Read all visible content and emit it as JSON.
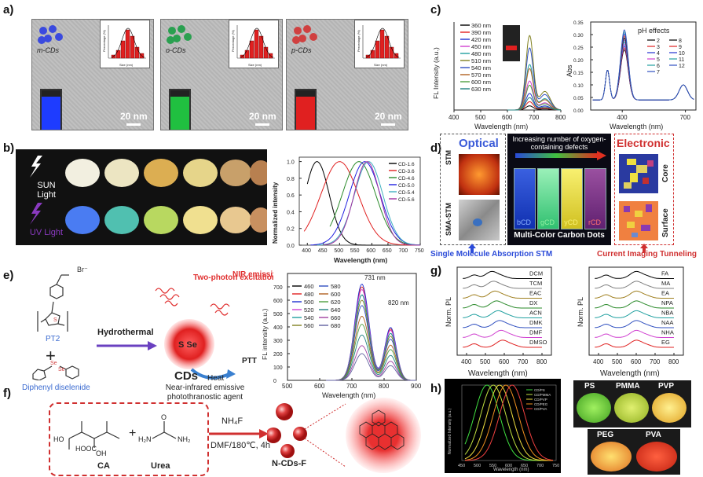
{
  "panels": {
    "a": {
      "label": "a)",
      "tem": [
        {
          "name": "m-CDs",
          "scale": "20 nm",
          "vial_color": "#1e3cff",
          "dots_color": "#3a4adf"
        },
        {
          "name": "o-CDs",
          "scale": "20 nm",
          "vial_color": "#20c040",
          "dots_color": "#2aa050"
        },
        {
          "name": "p-CDs",
          "scale": "20 nm",
          "vial_color": "#e02020",
          "dots_color": "#d04040"
        }
      ],
      "inset_xlabel": "Size (nm)",
      "inset_ylabel": "Percentage (%)"
    },
    "b": {
      "label": "b)",
      "sun_label": "SUN Light",
      "uv_label": "UV Light",
      "legend": [
        "CD-1.6",
        "CD-3.6",
        "CD-4.6",
        "CD-5.0",
        "CD-5.4",
        "CD-5.6"
      ],
      "colors": [
        "#000000",
        "#e02020",
        "#2a8a2a",
        "#2020e0",
        "#40b0c0",
        "#a030a0"
      ],
      "ylabel": "Normalized intensity",
      "xlabel": "Wavelength (nm)",
      "xticks": [
        "400",
        "450",
        "500",
        "550",
        "600",
        "650",
        "700",
        "750"
      ],
      "yticks": [
        "0.0",
        "0.2",
        "0.4",
        "0.6",
        "0.8",
        "1.0"
      ]
    },
    "c": {
      "label": "c)",
      "legend": [
        "360 nm",
        "390 nm",
        "420 nm",
        "450 nm",
        "480 nm",
        "510 nm",
        "540 nm",
        "570 nm",
        "600 nm",
        "630 nm"
      ],
      "ylabel": "FL Intensity (a.u.)",
      "xlabel": "Wavelength (nm)",
      "xticks": [
        "400",
        "500",
        "600",
        "700",
        "800"
      ],
      "right_title": "pH effects",
      "ph_col1": [
        "2",
        "3",
        "4",
        "5",
        "6",
        "7"
      ],
      "ph_col2": [
        "8",
        "9",
        "10",
        "11",
        "12"
      ],
      "right_ylabel": "Abs",
      "right_xlabel": "Wavelength (nm)",
      "right_xticks": [
        "400",
        "700"
      ],
      "right_yticks": [
        "0.00",
        "0.05",
        "0.10",
        "0.15",
        "0.20",
        "0.25",
        "0.30",
        "0.35"
      ]
    },
    "d": {
      "label": "d)",
      "optical": "Optical",
      "electronic": "Electronic",
      "stm": "STM",
      "sma_stm": "SMA-STM",
      "core": "Core",
      "surface": "Surface",
      "header": "Increasing number of oxygen-containing defects",
      "vials": [
        "bCD",
        "gCD",
        "yCD",
        "rCD"
      ],
      "footer": "Multi-Color Carbon Dots",
      "left_caption": "Single Molecule Absorption STM",
      "right_caption": "Current Imaging Tunneling"
    },
    "e": {
      "label": "e)",
      "pt2": "PT2",
      "br": "Br⁻",
      "plus": "+",
      "diselenide": "Diphenyl diselenide",
      "hydrothermal": "Hydrothermal",
      "two_photon": "Two-photon excitation",
      "nir": "NIR emissive",
      "dot_text": "S Se",
      "cds": "CDs",
      "heat": "Heat",
      "ptt": "PTT",
      "agent": "Near-infrared emissive photothranostic agent",
      "legend_col1": [
        "460",
        "480",
        "500",
        "520",
        "540",
        "560"
      ],
      "legend_col2": [
        "580",
        "600",
        "620",
        "640",
        "660",
        "680"
      ],
      "peak1": "731 nm",
      "peak2": "820 nm",
      "ylabel": "FL intensity (a.u.)",
      "xlabel": "Wavelength (nm)",
      "xticks": [
        "500",
        "600",
        "700",
        "800",
        "900"
      ],
      "yticks": [
        "0",
        "100",
        "200",
        "300",
        "400",
        "500",
        "600",
        "700"
      ]
    },
    "f": {
      "label": "f)",
      "ca": "CA",
      "urea": "Urea",
      "plus": "+",
      "reagent": "NH₄F",
      "condition": "DMF/180℃, 4h",
      "product": "N-CDs-F",
      "ho": "HO",
      "hooc": "HOOC",
      "oh": "OH"
    },
    "g": {
      "label": "g)",
      "left_solvents": [
        "DMSO",
        "DMF",
        "DMK",
        "ACN",
        "DX",
        "EAC",
        "TCM",
        "DCM"
      ],
      "right_solvents": [
        "EG",
        "NHA",
        "NAA",
        "NBA",
        "NPA",
        "EA",
        "MA",
        "FA"
      ],
      "ylabel": "Norm. PL",
      "xlabel": "Wavelength (nm)",
      "xticks": [
        "400",
        "500",
        "600",
        "700",
        "800"
      ]
    },
    "h": {
      "label": "h)",
      "legend": [
        "CD/PS",
        "CD/PMMA",
        "CD/PVP",
        "CD/PEG",
        "CD/PVA"
      ],
      "films": [
        "PS",
        "PMMA",
        "PVP",
        "PEG",
        "PVA"
      ],
      "ylabel": "Normalized Intensity (a.u.)",
      "xlabel": "Wavelength (nm)",
      "xticks": [
        "450",
        "500",
        "550",
        "600",
        "650",
        "700",
        "750"
      ]
    }
  }
}
